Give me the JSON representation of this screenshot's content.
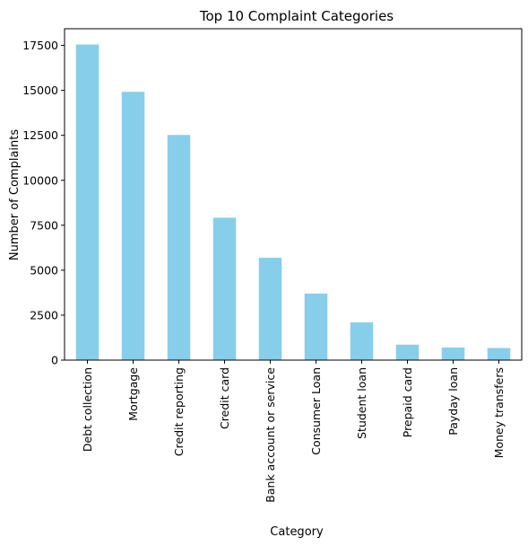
{
  "chart_data": {
    "type": "bar",
    "title": "Top 10 Complaint Categories",
    "xlabel": "Category",
    "ylabel": "Number of Complaints",
    "categories": [
      "Debt collection",
      "Mortgage",
      "Credit reporting",
      "Credit card",
      "Bank account or service",
      "Consumer Loan",
      "Student loan",
      "Prepaid card",
      "Payday loan",
      "Money transfers"
    ],
    "values": [
      17550,
      14920,
      12520,
      7920,
      5690,
      3700,
      2100,
      860,
      700,
      670
    ],
    "ylim": [
      0,
      18428
    ],
    "yticks": [
      0,
      2500,
      5000,
      7500,
      10000,
      12500,
      15000,
      17500
    ],
    "ytick_labels": [
      "0",
      "2500",
      "5000",
      "7500",
      "10000",
      "12500",
      "15000",
      "17500"
    ],
    "bar_color": "#87ceeb",
    "grid": false,
    "legend": "none"
  }
}
